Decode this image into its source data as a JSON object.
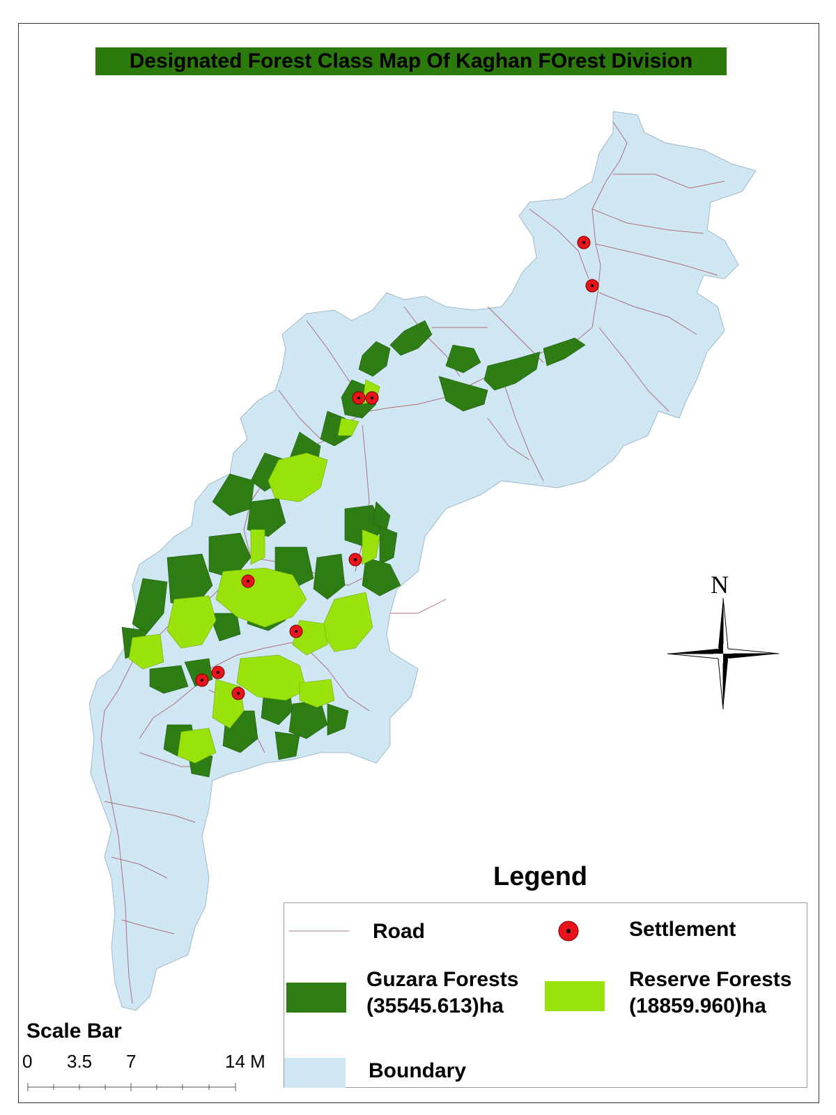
{
  "title": "Designated Forest Class Map Of Kaghan FOrest Division",
  "north_label": "N",
  "legend": {
    "title": "Legend",
    "road": "Road",
    "settlement": "Settlement",
    "guzara_line1": "Guzara Forests",
    "guzara_line2": "(35545.613)ha",
    "reserve_line1": "Reserve Forests",
    "reserve_line2": "(18859.960)ha",
    "boundary": "Boundary"
  },
  "scale_bar": {
    "title": "Scale Bar",
    "labels": [
      "0",
      "3.5",
      "7",
      "14 M"
    ]
  },
  "colors": {
    "boundary": "#cfe6f3",
    "guzara": "#2e7d14",
    "reserve": "#99e20a",
    "title_bg": "#2b7a0b",
    "settlement": "#e8141c",
    "road": "#a8505a"
  }
}
